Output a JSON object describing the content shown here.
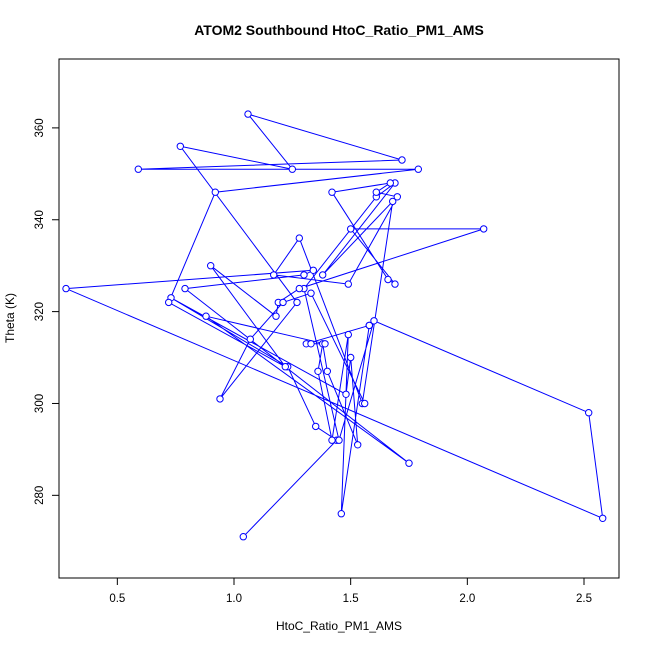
{
  "chart_data": {
    "type": "line",
    "title": "ATOM2 Southbound HtoC_Ratio_PM1_AMS",
    "xlabel": "HtoC_Ratio_PM1_AMS",
    "ylabel": "Theta (K)",
    "xlim": [
      0.25,
      2.65
    ],
    "ylim": [
      262,
      375
    ],
    "xticks": [
      0.5,
      1.0,
      1.5,
      2.0,
      2.5
    ],
    "xtick_labels": [
      "0.5",
      "1.0",
      "1.5",
      "2.0",
      "2.5"
    ],
    "yticks": [
      280,
      300,
      320,
      340,
      360
    ],
    "ytick_labels": [
      "280",
      "300",
      "320",
      "340",
      "360"
    ],
    "grid": false,
    "line_color": "#0000ff",
    "marker": "open-circle",
    "series": [
      {
        "x": [
          1.04,
          1.44,
          1.35,
          1.23,
          0.73,
          1.48,
          1.5,
          1.53,
          1.4,
          1.38,
          1.36,
          1.42,
          1.49,
          1.46,
          1.58,
          1.58,
          1.31,
          1.33,
          1.39,
          0.88,
          1.75,
          0.79,
          1.3,
          1.34,
          0.28,
          2.58,
          2.52,
          1.6,
          1.45,
          1.3,
          1.61,
          1.69,
          1.38,
          1.68,
          1.55,
          1.28,
          1.17,
          1.49,
          1.7,
          1.61,
          1.67,
          1.42,
          1.66,
          1.69,
          1.5,
          2.07,
          1.28,
          1.19,
          1.18,
          0.9,
          1.22,
          0.72,
          0.92,
          1.79,
          0.59,
          1.72,
          1.06,
          1.25,
          0.77,
          1.27,
          0.94,
          1.07,
          1.21,
          1.33,
          1.56
        ],
        "y": [
          271,
          292,
          295,
          308,
          323,
          302,
          310,
          291,
          307,
          313,
          307,
          292,
          315,
          276,
          317,
          317,
          313,
          313,
          313,
          319,
          287,
          325,
          328,
          329,
          325,
          275,
          298,
          318,
          292,
          325,
          345,
          348,
          328,
          344,
          300,
          336,
          328,
          326,
          345,
          346,
          348,
          346,
          327,
          326,
          338,
          338,
          325,
          322,
          319,
          330,
          308,
          322,
          346,
          351,
          351,
          353,
          363,
          351,
          356,
          322,
          301,
          314,
          322,
          324,
          300
        ]
      }
    ]
  }
}
